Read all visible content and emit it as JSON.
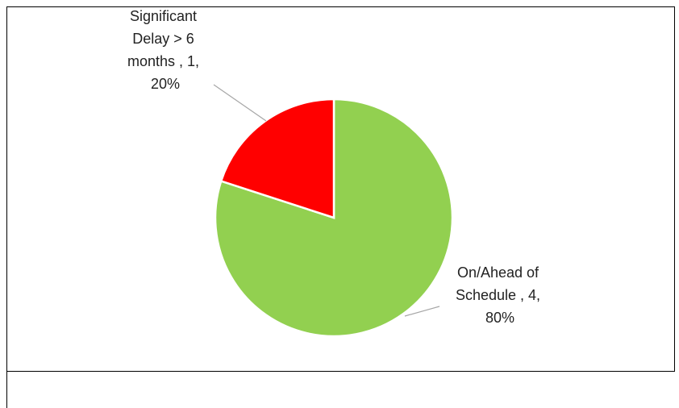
{
  "chart_data": {
    "type": "pie",
    "categories": [
      "On/Ahead of Schedule",
      "Significant Delay > 6 months"
    ],
    "values": [
      4,
      1
    ],
    "value_labels": [
      "On/Ahead of Schedule , 4, 80%",
      "Significant Delay > 6 months , 1, 20%"
    ],
    "colors": [
      "#92d050",
      "#ff0000"
    ]
  }
}
